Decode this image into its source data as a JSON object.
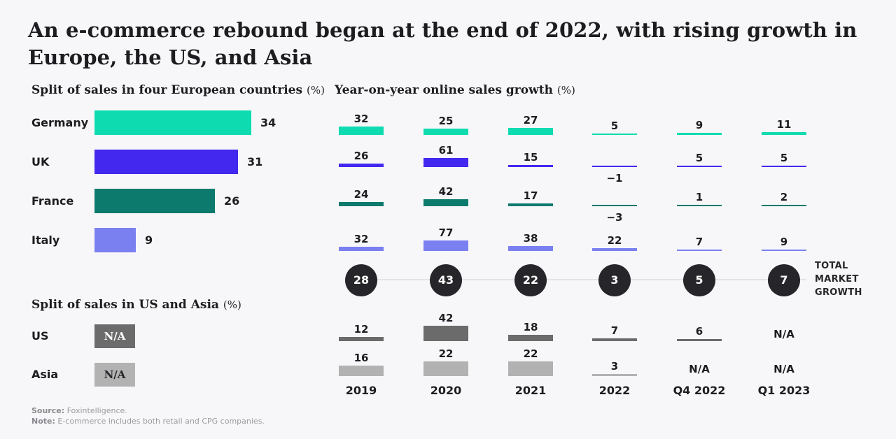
{
  "title_lines": [
    "An e-commerce rebound began at the end of 2022, with rising growth in",
    "Europe, the US, and Asia"
  ],
  "footer": {
    "source_label": "Source:",
    "source_text": " Foxintelligence.",
    "note_label": "Note:",
    "note_text": " E-commerce includes both retail and CPG companies."
  },
  "colors": {
    "background": "#f7f7f9",
    "germany_teal": "#0edcb0",
    "uk_indigo": "#4328f0",
    "france_dark_teal": "#0c7a6c",
    "italy_periwinkle": "#7b80f0",
    "us_dark_gray": "#6b6b6b",
    "asia_light_gray": "#b2b2b2",
    "total_circle": "#26262a",
    "connector_line": "#e3e3e7"
  },
  "chart_data": [
    {
      "type": "bar",
      "orientation": "horizontal",
      "title": "Split of sales in four European countries",
      "unit": "(%)",
      "categories": [
        "Germany",
        "UK",
        "France",
        "Italy"
      ],
      "values": [
        34,
        31,
        26,
        9
      ],
      "colors": [
        "#0edcb0",
        "#4328f0",
        "#0c7a6c",
        "#7b80f0"
      ],
      "xlim": [
        0,
        40
      ],
      "grid": false,
      "legend": "none"
    },
    {
      "type": "table",
      "title": "Split of sales in US and Asia",
      "unit": "(%)",
      "categories": [
        "US",
        "Asia"
      ],
      "values": [
        "N/A",
        "N/A"
      ],
      "colors": [
        "#6b6b6b",
        "#b2b2b2"
      ],
      "text_colors": [
        "#ffffff",
        "#26262a"
      ]
    },
    {
      "type": "bar",
      "title": "Year-on-year online sales growth",
      "unit": "(%)",
      "categories": [
        "2019",
        "2020",
        "2021",
        "2022",
        "Q4 2022",
        "Q1 2023"
      ],
      "series": [
        {
          "name": "Germany",
          "color": "#0edcb0",
          "values": [
            32,
            25,
            27,
            5,
            9,
            11
          ]
        },
        {
          "name": "UK",
          "color": "#4328f0",
          "values": [
            26,
            61,
            15,
            -1,
            5,
            5
          ]
        },
        {
          "name": "France",
          "color": "#0c7a6c",
          "values": [
            24,
            42,
            17,
            -3,
            1,
            2
          ]
        },
        {
          "name": "Italy",
          "color": "#7b80f0",
          "values": [
            32,
            77,
            38,
            22,
            7,
            9
          ]
        },
        {
          "name": "US",
          "color": "#6b6b6b",
          "values": [
            12,
            42,
            18,
            7,
            6,
            "N/A"
          ]
        },
        {
          "name": "Asia",
          "color": "#b2b2b2",
          "values": [
            16,
            22,
            22,
            3,
            "N/A",
            "N/A"
          ]
        }
      ],
      "total": {
        "label": "TOTAL MARKET GROWTH",
        "color": "#26262a",
        "values": [
          28,
          43,
          22,
          3,
          5,
          7
        ]
      },
      "grid": false,
      "legend": "none"
    }
  ]
}
